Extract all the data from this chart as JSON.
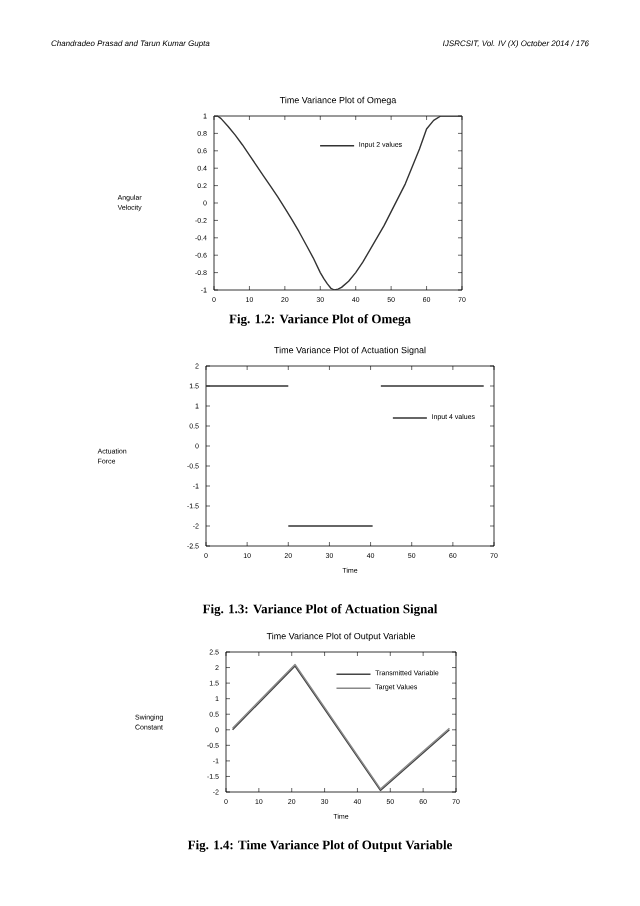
{
  "chart_data": [
    {
      "type": "line",
      "title": "Time Variance Plot of Omega",
      "ylabel": "Angular Velocity",
      "x": [
        0,
        1,
        2,
        4,
        6,
        8,
        10,
        12,
        14,
        16,
        18,
        20,
        22,
        24,
        26,
        28,
        30,
        31,
        32,
        33,
        34,
        35,
        36,
        38,
        40,
        42,
        44,
        46,
        48,
        50,
        52,
        54,
        56,
        58,
        60,
        62,
        64,
        66,
        68,
        70
      ],
      "series": [
        {
          "name": "Input 2 values",
          "color": "#333333",
          "values": [
            1,
            1,
            0.97,
            0.88,
            0.78,
            0.67,
            0.55,
            0.43,
            0.31,
            0.19,
            0.07,
            -0.06,
            -0.19,
            -0.33,
            -0.48,
            -0.63,
            -0.8,
            -0.87,
            -0.93,
            -0.98,
            -1,
            -0.99,
            -0.97,
            -0.9,
            -0.8,
            -0.68,
            -0.54,
            -0.4,
            -0.26,
            -0.1,
            0.06,
            0.22,
            0.42,
            0.62,
            0.85,
            0.95,
            1,
            1,
            1,
            1
          ]
        }
      ],
      "xlim": [
        0,
        70
      ],
      "ylim": [
        -1,
        1
      ],
      "xticks": [
        0,
        10,
        20,
        30,
        40,
        50,
        60,
        70
      ],
      "yticks": [
        -1,
        -0.8,
        -0.6,
        -0.4,
        -0.2,
        0,
        0.2,
        0.4,
        0.6,
        0.8,
        1
      ],
      "legend": "top",
      "annotations": [
        "Chandradeo Prasad and Tarun Kumar Gupta",
        "IJSRCSIT, Vol. IV (X) October 2014 / 176",
        "Fig. 1.2: Variance Plot of Omega"
      ]
    },
    {
      "type": "line",
      "title": "Time Variance Plot of Actuation Signal",
      "ylabel": "Actuation Force",
      "xlabel": "Time",
      "series": [
        {
          "name": "Input 4 values",
          "color": "#333333",
          "x": [
            0,
            20
          ],
          "values": [
            1.5,
            1.5
          ]
        },
        {
          "color": "#333333",
          "x": [
            20,
            40.5
          ],
          "values": [
            -2,
            -2
          ]
        },
        {
          "color": "#333333",
          "x": [
            42.5,
            67.5
          ],
          "values": [
            1.5,
            1.5
          ]
        }
      ],
      "xlim": [
        0,
        70
      ],
      "ylim": [
        -2.5,
        2
      ],
      "xticks": [
        0,
        10,
        20,
        30,
        40,
        50,
        60,
        70
      ],
      "yticks": [
        -2.5,
        -2,
        -1.5,
        -1,
        -0.5,
        0,
        0.5,
        1,
        1.5,
        2
      ],
      "legend": "right",
      "annotations": [
        "Fig. 1.3: Variance Plot of Actuation Signal"
      ]
    },
    {
      "type": "line",
      "title": "Time Variance Plot of Output Variable",
      "ylabel": "Swinging Constant",
      "xlabel": "Time",
      "x": [
        2,
        21,
        47,
        68
      ],
      "series": [
        {
          "name": "Transmitted Variable",
          "color": "#444444",
          "values": [
            0,
            2.05,
            -1.95,
            0
          ]
        },
        {
          "name": "Target Values",
          "color": "#888888",
          "values": [
            0.05,
            2.1,
            -1.9,
            0.05
          ]
        }
      ],
      "xlim": [
        0,
        70
      ],
      "ylim": [
        -2,
        2.5
      ],
      "xticks": [
        0,
        10,
        20,
        30,
        40,
        50,
        60,
        70
      ],
      "yticks": [
        -2,
        -1.5,
        -1,
        -0.5,
        0,
        0.5,
        1,
        1.5,
        2,
        2.5
      ],
      "legend": "top right",
      "annotations": [
        "Fig. 1.4: Time Variance Plot of Output Variable"
      ]
    }
  ]
}
